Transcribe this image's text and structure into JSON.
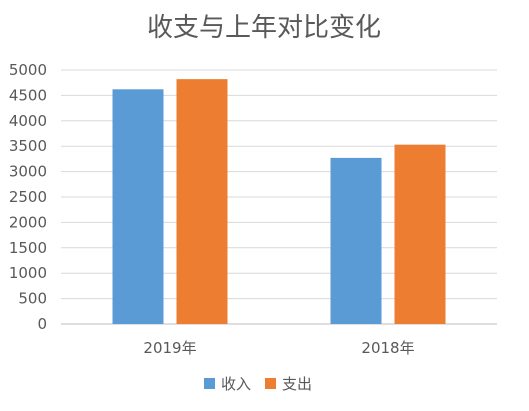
{
  "chart_data": {
    "type": "bar",
    "title": "收支与上年对比变化",
    "categories": [
      "2019年",
      "2018年"
    ],
    "series": [
      {
        "name": "收入",
        "values": [
          4620,
          3270
        ],
        "color": "#5b9bd5"
      },
      {
        "name": "支出",
        "values": [
          4820,
          3530
        ],
        "color": "#ed7d31"
      }
    ],
    "ylim": [
      0,
      5000
    ],
    "yticks": [
      0,
      500,
      1000,
      1500,
      2000,
      2500,
      3000,
      3500,
      4000,
      4500,
      5000
    ],
    "grid": true,
    "legend_position": "bottom"
  }
}
